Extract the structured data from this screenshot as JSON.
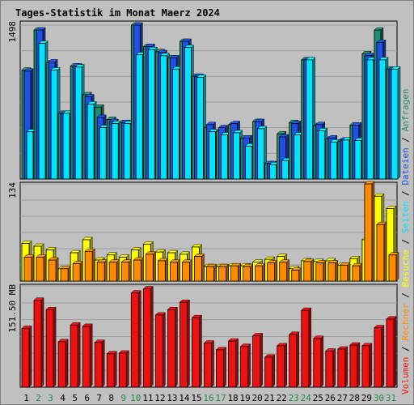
{
  "chart_data": {
    "type": "bar",
    "title": "Tages-Statistik im Monat Maerz 2024",
    "days": [
      "1",
      "2",
      "3",
      "4",
      "5",
      "6",
      "7",
      "8",
      "9",
      "10",
      "11",
      "12",
      "13",
      "14",
      "15",
      "16",
      "17",
      "18",
      "19",
      "20",
      "21",
      "22",
      "23",
      "24",
      "25",
      "26",
      "27",
      "28",
      "29",
      "30",
      "31"
    ],
    "weekend_days": [
      "2",
      "3",
      "9",
      "10",
      "16",
      "17",
      "23",
      "24",
      "30",
      "31"
    ],
    "panels": [
      {
        "name": "requests",
        "tick_label": "1498",
        "ymax": 1498,
        "series": [
          {
            "name": "Anfragen",
            "color": "#1e8c6e",
            "values": [
              1060,
              1450,
              1130,
              640,
              1100,
              820,
              700,
              580,
              550,
              1498,
              1290,
              1240,
              1180,
              1340,
              1000,
              500,
              470,
              530,
              400,
              560,
              150,
              440,
              550,
              1160,
              520,
              390,
              370,
              525,
              1220,
              1450,
              1070
            ]
          },
          {
            "name": "Dateien",
            "color": "#1e50e6",
            "values": [
              1050,
              1450,
              1140,
              640,
              1100,
              800,
              600,
              560,
              550,
              1498,
              1290,
              1230,
              1180,
              1340,
              1000,
              530,
              500,
              540,
              400,
              560,
              150,
              410,
              540,
              1160,
              530,
              400,
              380,
              525,
              1200,
              1330,
              1070
            ]
          },
          {
            "name": "Seiten",
            "color": "#00e5ff",
            "values": [
              460,
              1320,
              1060,
              640,
              1090,
              730,
              500,
              540,
              540,
              1210,
              1260,
              1200,
              1070,
              1280,
              990,
              460,
              430,
              450,
              320,
              490,
              140,
              180,
              430,
              1160,
              470,
              360,
              380,
              375,
              1160,
              1160,
              1070
            ]
          }
        ]
      },
      {
        "name": "visits",
        "tick_label": "134",
        "ymax": 134,
        "series": [
          {
            "name": "Besuche",
            "color": "#ffff00",
            "values": [
              52,
              48,
              43,
              17,
              39,
              57,
              29,
              36,
              33,
              43,
              51,
              40,
              39,
              37,
              47,
              20,
              20,
              21,
              21,
              26,
              30,
              34,
              17,
              28,
              27,
              28,
              22,
              31,
              57,
              117,
              100
            ]
          },
          {
            "name": "Rechner",
            "color": "#ff8c00",
            "values": [
              33,
              33,
              29,
              17,
              24,
              41,
              26,
              26,
              26,
              29,
              37,
              28,
              26,
              26,
              34,
              20,
              20,
              21,
              20,
              21,
              25,
              26,
              15,
              27,
              25,
              25,
              22,
              21,
              134,
              78,
              36
            ]
          }
        ]
      },
      {
        "name": "volume",
        "tick_label": "151.50 MB",
        "ymax": 151.5,
        "series": [
          {
            "name": "Volumen",
            "color": "#ee1111",
            "values": [
              88,
              130,
              116,
              68,
              93,
              91,
              67,
              50,
              51,
              141,
              147,
              108,
              116,
              127,
              104,
              66,
              56,
              69,
              61,
              77,
              45,
              62,
              79,
              115,
              73,
              54,
              57,
              63,
              62,
              89,
              102
            ]
          }
        ]
      }
    ],
    "legend": [
      "Volumen",
      "Rechner",
      "Besuche",
      "Seiten",
      "Dateien",
      "Anfragen"
    ],
    "legend_separator": " / ",
    "grid": true
  },
  "colors": {
    "background": "#c0c0c0",
    "plot_background": "#c0c0c0",
    "grid": "#9e9e9e",
    "title": "#0000ff",
    "weekday_label": "#000000",
    "weekend_label": "#1e8c4e"
  }
}
